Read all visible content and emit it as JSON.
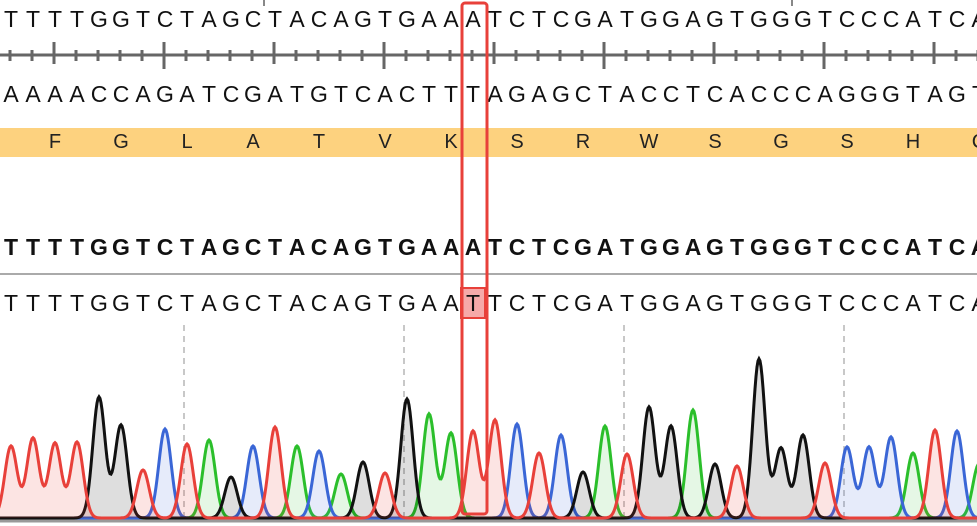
{
  "viewer": {
    "template_top_strand": "TTTTGGTCTAGCTACAGTGAAATCTCGATGGAGTGGGTCCCATCA",
    "template_bottom_strand": "AAAACCAGATCGATGTCACTTTAGAGCTACCTCACCCAGGGTAGT",
    "translation": [
      "F",
      "G",
      "L",
      "A",
      "T",
      "V",
      "K",
      "S",
      "R",
      "W",
      "S",
      "G",
      "S",
      "H",
      "C"
    ],
    "alignment_reference": "TTTTGGTCTAGCTACAGTGAAATCTCGATGGAGTGGGTCCCATCA",
    "read_sequence": "TTTTGGTCTAGCTACAGTGAATTCTCGATGGAGTGGGTCCCATCA",
    "selected_base_index": 21,
    "mismatch": {
      "reference": "A",
      "read": "T"
    },
    "colors": {
      "T": "#e8403a",
      "G": "#111111",
      "C": "#3a66d6",
      "A": "#2bbf2b",
      "translation_band": "#fdd27f",
      "selection": "#e8403a",
      "mismatch_fill": "#f6a9a9"
    },
    "chromatogram_peak_intensity": [
      72,
      80,
      75,
      76,
      121,
      93,
      48,
      89,
      74,
      78,
      41,
      72,
      91,
      72,
      67,
      44,
      56,
      45,
      119,
      104,
      85,
      87,
      98,
      94,
      65,
      83,
      46,
      92,
      64,
      111,
      92,
      108,
      54,
      52,
      159,
      70,
      83,
      55,
      71,
      71,
      81,
      65,
      88,
      87,
      54
    ]
  }
}
